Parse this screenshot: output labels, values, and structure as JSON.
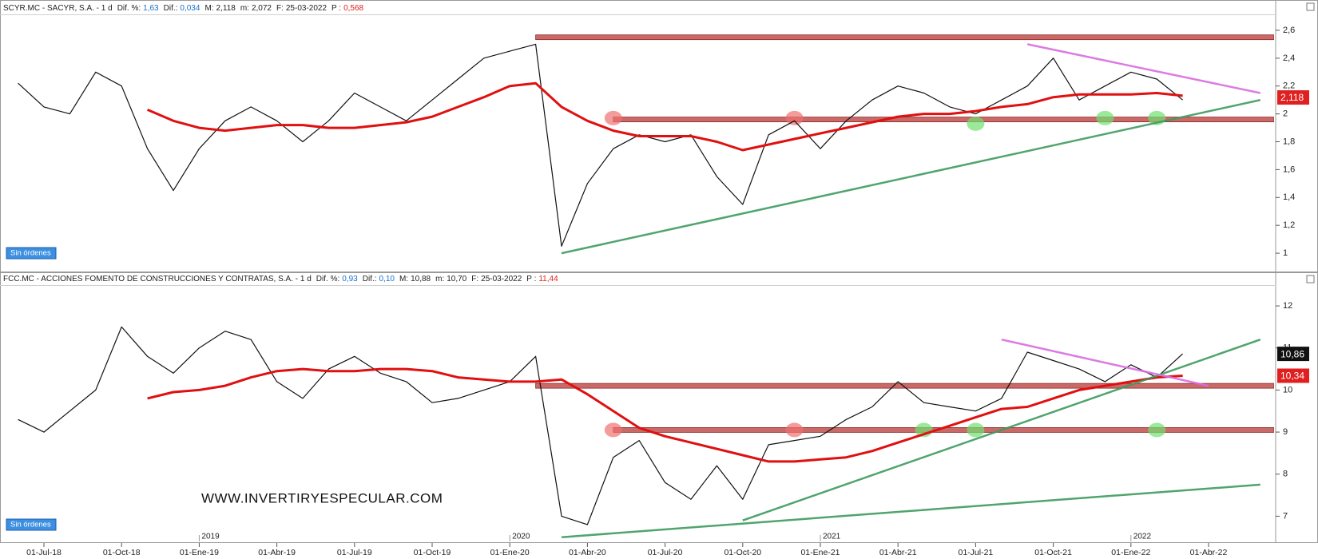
{
  "chart_data": [
    {
      "type": "line",
      "title": "SCYR.MC - SACYR, S.A. - 1 d",
      "stats": [
        {
          "label": "Dif. %:",
          "value": "1,63",
          "color": "#1a6fd1"
        },
        {
          "label": "Dif.:",
          "value": "0,034",
          "color": "#1a6fd1"
        },
        {
          "label": "M:",
          "value": "2,118",
          "color": "#222222"
        },
        {
          "label": "m:",
          "value": "2,072",
          "color": "#222222"
        },
        {
          "label": "F:",
          "value": "25-03-2022",
          "color": "#222222"
        },
        {
          "label": "P :",
          "value": "0,568",
          "color": "#e02020"
        }
      ],
      "button": "Sin órdenes",
      "x": [
        "01-Jun-18",
        "01-Jul-18",
        "01-Ago-18",
        "01-Sep-18",
        "01-Oct-18",
        "01-Nov-18",
        "01-Dic-18",
        "01-Ene-19",
        "01-Feb-19",
        "01-Mar-19",
        "01-Abr-19",
        "01-May-19",
        "01-Jun-19",
        "01-Jul-19",
        "01-Ago-19",
        "01-Sep-19",
        "01-Oct-19",
        "01-Nov-19",
        "01-Dic-19",
        "01-Ene-20",
        "01-Feb-20",
        "01-Mar-20",
        "01-Abr-20",
        "01-May-20",
        "01-Jun-20",
        "01-Jul-20",
        "01-Ago-20",
        "01-Sep-20",
        "01-Oct-20",
        "01-Nov-20",
        "01-Dic-20",
        "01-Ene-21",
        "01-Feb-21",
        "01-Mar-21",
        "01-Abr-21",
        "01-May-21",
        "01-Jun-21",
        "01-Jul-21",
        "01-Ago-21",
        "01-Sep-21",
        "01-Oct-21",
        "01-Nov-21",
        "01-Dic-21",
        "01-Ene-22",
        "01-Feb-22",
        "01-Mar-22",
        "01-Abr-22",
        "01-May-22",
        "01-Jun-22"
      ],
      "values": [
        2.22,
        2.05,
        2.0,
        2.3,
        2.2,
        1.75,
        1.45,
        1.75,
        1.95,
        2.05,
        1.95,
        1.8,
        1.95,
        2.15,
        2.05,
        1.95,
        2.1,
        2.25,
        2.4,
        2.45,
        2.5,
        1.05,
        1.5,
        1.75,
        1.85,
        1.8,
        1.85,
        1.55,
        1.35,
        1.85,
        1.95,
        1.75,
        1.95,
        2.1,
        2.2,
        2.15,
        2.05,
        2.0,
        2.1,
        2.2,
        2.4,
        2.1,
        2.2,
        2.3,
        2.25,
        2.1,
        null,
        null,
        null
      ],
      "color": "#111111",
      "moving_average": {
        "color": "#e01010",
        "values": [
          null,
          null,
          null,
          null,
          null,
          2.03,
          1.95,
          1.9,
          1.88,
          1.9,
          1.92,
          1.92,
          1.9,
          1.9,
          1.92,
          1.94,
          1.98,
          2.05,
          2.12,
          2.2,
          2.22,
          2.05,
          1.95,
          1.88,
          1.84,
          1.84,
          1.84,
          1.8,
          1.74,
          1.78,
          1.82,
          1.86,
          1.9,
          1.94,
          1.98,
          2.0,
          2.0,
          2.02,
          2.05,
          2.07,
          2.12,
          2.14,
          2.14,
          2.14,
          2.15,
          2.13,
          null,
          null,
          null
        ]
      },
      "levels": [
        {
          "value": 2.55,
          "from": "01-Feb-20",
          "color": "#c0504d"
        },
        {
          "value": 1.96,
          "from": "01-May-20",
          "color": "#c0504d"
        }
      ],
      "trendlines": [
        {
          "x": [
            "01-Mar-20",
            "01-Jun-22"
          ],
          "values": [
            1.0,
            2.1
          ],
          "color": "#3d9a5e"
        },
        {
          "x": [
            "01-Sep-21",
            "01-Jun-22"
          ],
          "values": [
            2.5,
            2.15
          ],
          "color": "#d86ee0"
        }
      ],
      "highlights": [
        {
          "x": "01-May-20",
          "value": 1.97,
          "color": "#f07070"
        },
        {
          "x": "01-Dic-20",
          "value": 1.97,
          "color": "#f07070"
        },
        {
          "x": "01-Jul-21",
          "value": 1.93,
          "color": "#70e070"
        },
        {
          "x": "01-Dic-21",
          "value": 1.97,
          "color": "#70e070"
        },
        {
          "x": "01-Feb-22",
          "value": 1.97,
          "color": "#70e070"
        }
      ],
      "price_tags": [
        {
          "value": 2.118,
          "label": "2,118",
          "color": "#e02020"
        }
      ],
      "ylim": [
        0.88,
        2.68
      ],
      "yticks": [
        1,
        {
          "value": 1.2,
          "label": "1,2"
        },
        {
          "value": 1.4,
          "label": "1,4"
        },
        {
          "value": 1.6,
          "label": "1,6"
        },
        {
          "value": 1.8,
          "label": "1,8"
        },
        2,
        {
          "value": 2.2,
          "label": "2,2"
        },
        {
          "value": 2.4,
          "label": "2,4"
        },
        {
          "value": 2.6,
          "label": "2,6"
        }
      ]
    },
    {
      "type": "line",
      "title": "FCC.MC - ACCIONES FOMENTO DE CONSTRUCCIONES Y CONTRATAS, S.A. - 1 d",
      "stats": [
        {
          "label": "Dif. %:",
          "value": "0,93",
          "color": "#1a6fd1"
        },
        {
          "label": "Dif.:",
          "value": "0,10",
          "color": "#1a6fd1"
        },
        {
          "label": "M:",
          "value": "10,88",
          "color": "#222222"
        },
        {
          "label": "m:",
          "value": "10,70",
          "color": "#222222"
        },
        {
          "label": "F:",
          "value": "25-03-2022",
          "color": "#222222"
        },
        {
          "label": "P :",
          "value": "11,44",
          "color": "#e02020"
        }
      ],
      "button": "Sin órdenes",
      "watermark": "WWW.INVERTIRYESPECULAR.COM",
      "x": [
        "01-Jun-18",
        "01-Jul-18",
        "01-Ago-18",
        "01-Sep-18",
        "01-Oct-18",
        "01-Nov-18",
        "01-Dic-18",
        "01-Ene-19",
        "01-Feb-19",
        "01-Mar-19",
        "01-Abr-19",
        "01-May-19",
        "01-Jun-19",
        "01-Jul-19",
        "01-Ago-19",
        "01-Sep-19",
        "01-Oct-19",
        "01-Nov-19",
        "01-Dic-19",
        "01-Ene-20",
        "01-Feb-20",
        "01-Mar-20",
        "01-Abr-20",
        "01-May-20",
        "01-Jun-20",
        "01-Jul-20",
        "01-Ago-20",
        "01-Sep-20",
        "01-Oct-20",
        "01-Nov-20",
        "01-Dic-20",
        "01-Ene-21",
        "01-Feb-21",
        "01-Mar-21",
        "01-Abr-21",
        "01-May-21",
        "01-Jun-21",
        "01-Jul-21",
        "01-Ago-21",
        "01-Sep-21",
        "01-Oct-21",
        "01-Nov-21",
        "01-Dic-21",
        "01-Ene-22",
        "01-Feb-22",
        "01-Mar-22",
        "01-Abr-22",
        "01-May-22",
        "01-Jun-22"
      ],
      "values": [
        9.3,
        9.0,
        9.5,
        10.0,
        11.5,
        10.8,
        10.4,
        11.0,
        11.4,
        11.2,
        10.2,
        9.8,
        10.5,
        10.8,
        10.4,
        10.2,
        9.7,
        9.8,
        10.0,
        10.2,
        10.8,
        7.0,
        6.8,
        8.4,
        8.8,
        7.8,
        7.4,
        8.2,
        7.4,
        8.7,
        8.8,
        8.9,
        9.3,
        9.6,
        10.2,
        9.7,
        9.6,
        9.5,
        9.8,
        10.9,
        10.7,
        10.5,
        10.2,
        10.6,
        10.3,
        10.86,
        null,
        null,
        null
      ],
      "color": "#111111",
      "moving_average": {
        "color": "#e01010",
        "values": [
          null,
          null,
          null,
          null,
          null,
          9.8,
          9.95,
          10.0,
          10.1,
          10.3,
          10.45,
          10.5,
          10.45,
          10.45,
          10.5,
          10.5,
          10.45,
          10.3,
          10.25,
          10.2,
          10.2,
          10.25,
          9.9,
          9.5,
          9.1,
          8.9,
          8.75,
          8.6,
          8.45,
          8.3,
          8.3,
          8.35,
          8.4,
          8.55,
          8.75,
          8.95,
          9.15,
          9.35,
          9.55,
          9.6,
          9.8,
          10.0,
          10.1,
          10.2,
          10.3,
          10.34,
          null,
          null,
          null
        ]
      },
      "levels": [
        {
          "value": 10.1,
          "from": "01-Feb-20",
          "color": "#c0504d"
        },
        {
          "value": 9.05,
          "from": "01-May-20",
          "color": "#c0504d"
        }
      ],
      "trendlines": [
        {
          "x": [
            "01-Mar-20",
            "01-Jun-22"
          ],
          "values": [
            6.5,
            7.75
          ],
          "color": "#3d9a5e"
        },
        {
          "x": [
            "01-Oct-20",
            "01-Jun-22"
          ],
          "values": [
            6.9,
            11.2
          ],
          "color": "#3d9a5e"
        },
        {
          "x": [
            "01-Ago-21",
            "01-Abr-22"
          ],
          "values": [
            11.2,
            10.1
          ],
          "color": "#d86ee0"
        }
      ],
      "highlights": [
        {
          "x": "01-May-20",
          "value": 9.05,
          "color": "#f07070"
        },
        {
          "x": "01-Dic-20",
          "value": 9.05,
          "color": "#f07070"
        },
        {
          "x": "01-May-21",
          "value": 9.05,
          "color": "#70e070"
        },
        {
          "x": "01-Jul-21",
          "value": 9.05,
          "color": "#70e070"
        },
        {
          "x": "01-Feb-22",
          "value": 9.05,
          "color": "#70e070"
        }
      ],
      "price_tags": [
        {
          "value": 10.86,
          "label": "10,86",
          "color": "#111111"
        },
        {
          "value": 10.34,
          "label": "10,34",
          "color": "#e02020"
        }
      ],
      "ylim": [
        6.4,
        12.4
      ],
      "yticks": [
        7,
        8,
        9,
        10,
        11,
        12
      ],
      "xticks": [
        "01-Jul-18",
        "01-Oct-18",
        "01-Ene-19",
        "01-Abr-19",
        "01-Jul-19",
        "01-Oct-19",
        "01-Ene-20",
        "01-Abr-20",
        "01-Jul-20",
        "01-Oct-20",
        "01-Ene-21",
        "01-Abr-21",
        "01-Jul-21",
        "01-Oct-21",
        "01-Ene-22",
        "01-Abr-22"
      ],
      "year_labels": [
        {
          "x": "01-Ene-19",
          "label": "2019"
        },
        {
          "x": "01-Ene-20",
          "label": "2020"
        },
        {
          "x": "01-Ene-21",
          "label": "2021"
        },
        {
          "x": "01-Ene-22",
          "label": "2022"
        }
      ]
    }
  ]
}
